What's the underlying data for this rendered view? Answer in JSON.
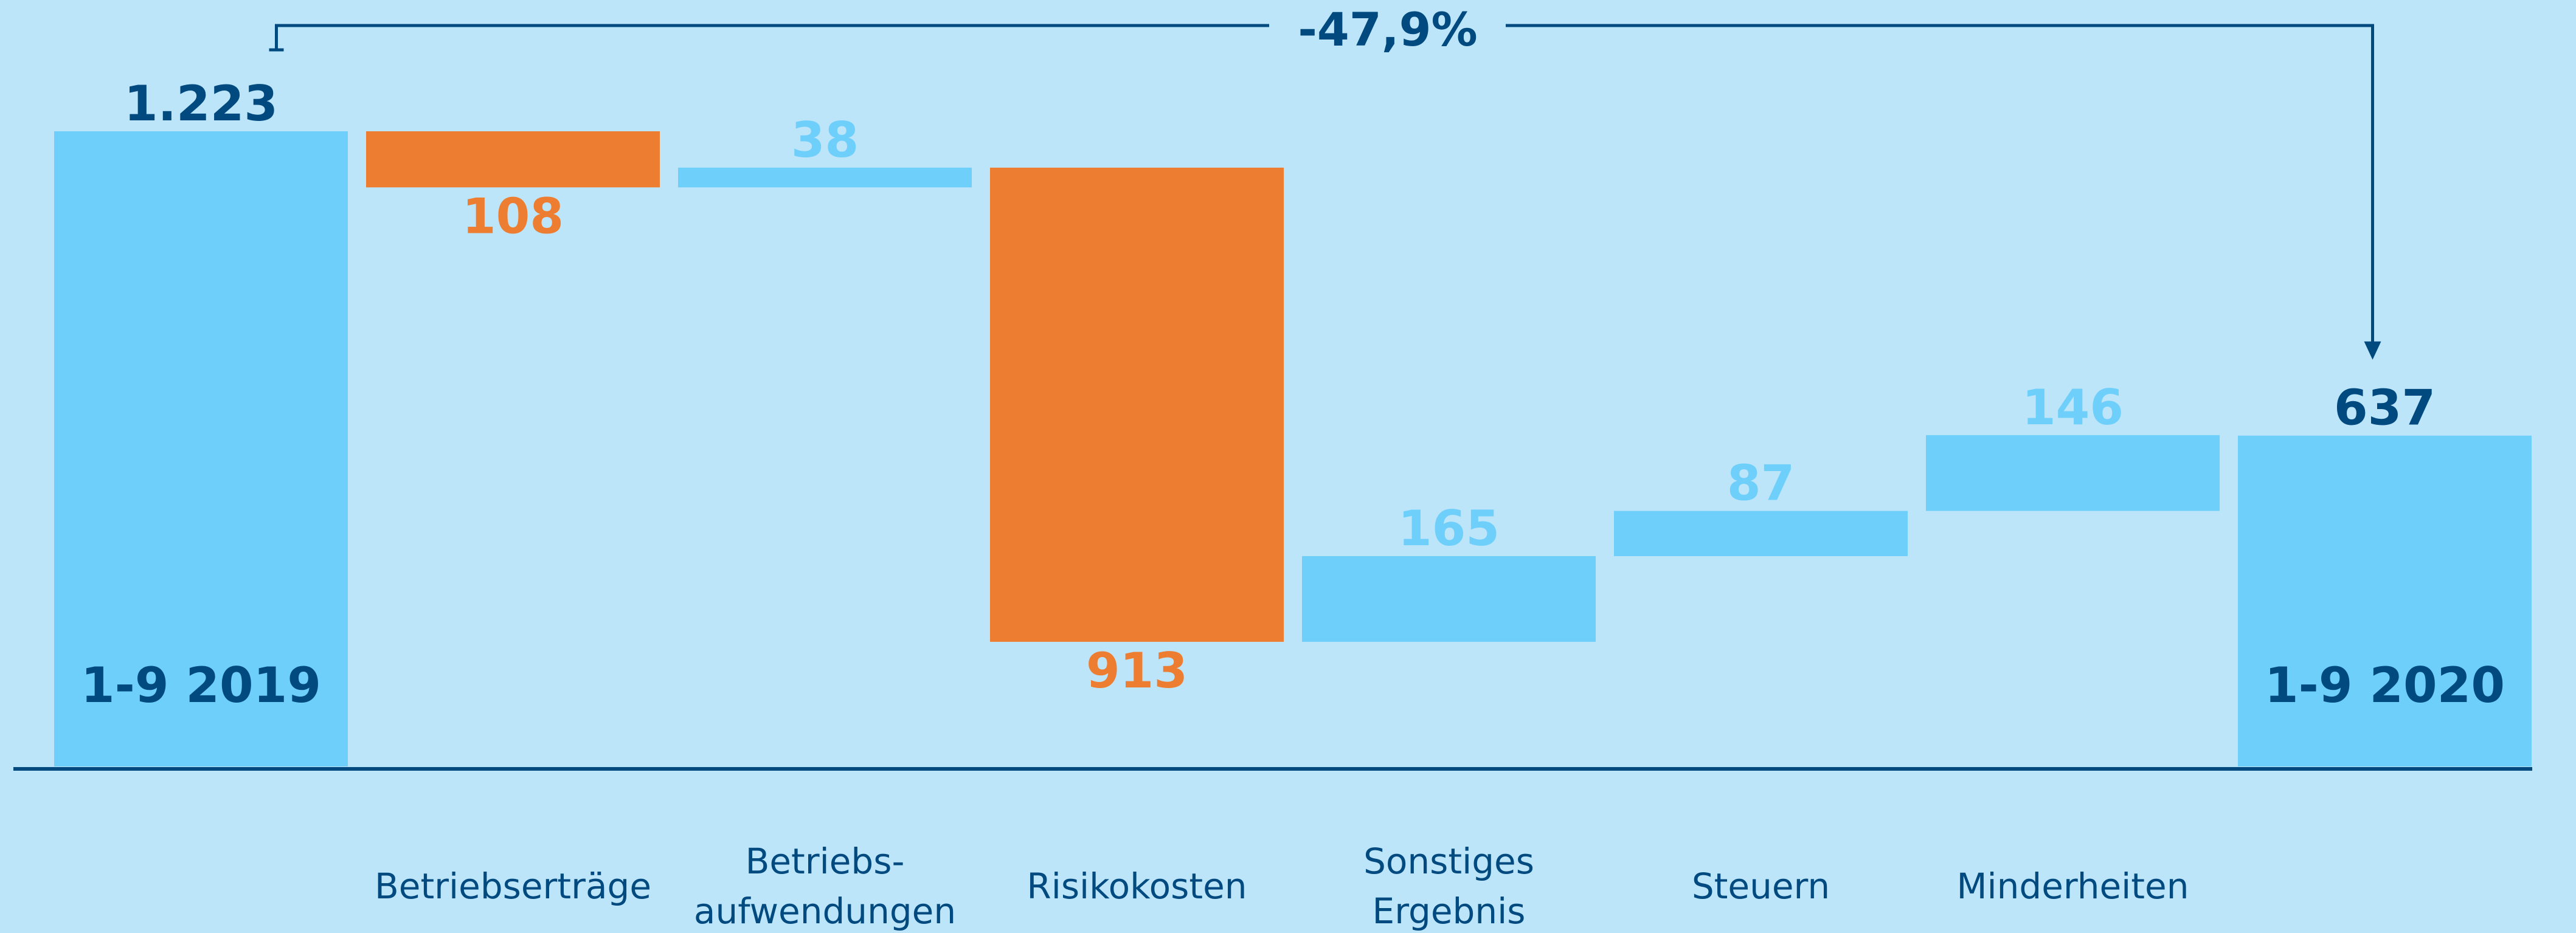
{
  "chart_data": {
    "type": "waterfall",
    "annotation": "-47,9%",
    "categories": [
      "1-9 2019",
      "Betriebserträge",
      "Betriebs-\naufwendungen",
      "Risikokosten",
      "Sonstiges\nErgebnis",
      "Steuern",
      "Minderheiten",
      "1-9 2020"
    ],
    "measure": [
      "total",
      "relative",
      "relative",
      "relative",
      "relative",
      "relative",
      "relative",
      "total"
    ],
    "values": [
      1223,
      -108,
      38,
      -913,
      165,
      87,
      146,
      637
    ],
    "value_labels": [
      "1.223",
      "108",
      "38",
      "913",
      "165",
      "87",
      "146",
      "637"
    ],
    "increase_color": "#6fcffb",
    "decrease_color": "#ed7d31",
    "total_color": "#6fcffb",
    "total_label_color": "#004a80"
  }
}
